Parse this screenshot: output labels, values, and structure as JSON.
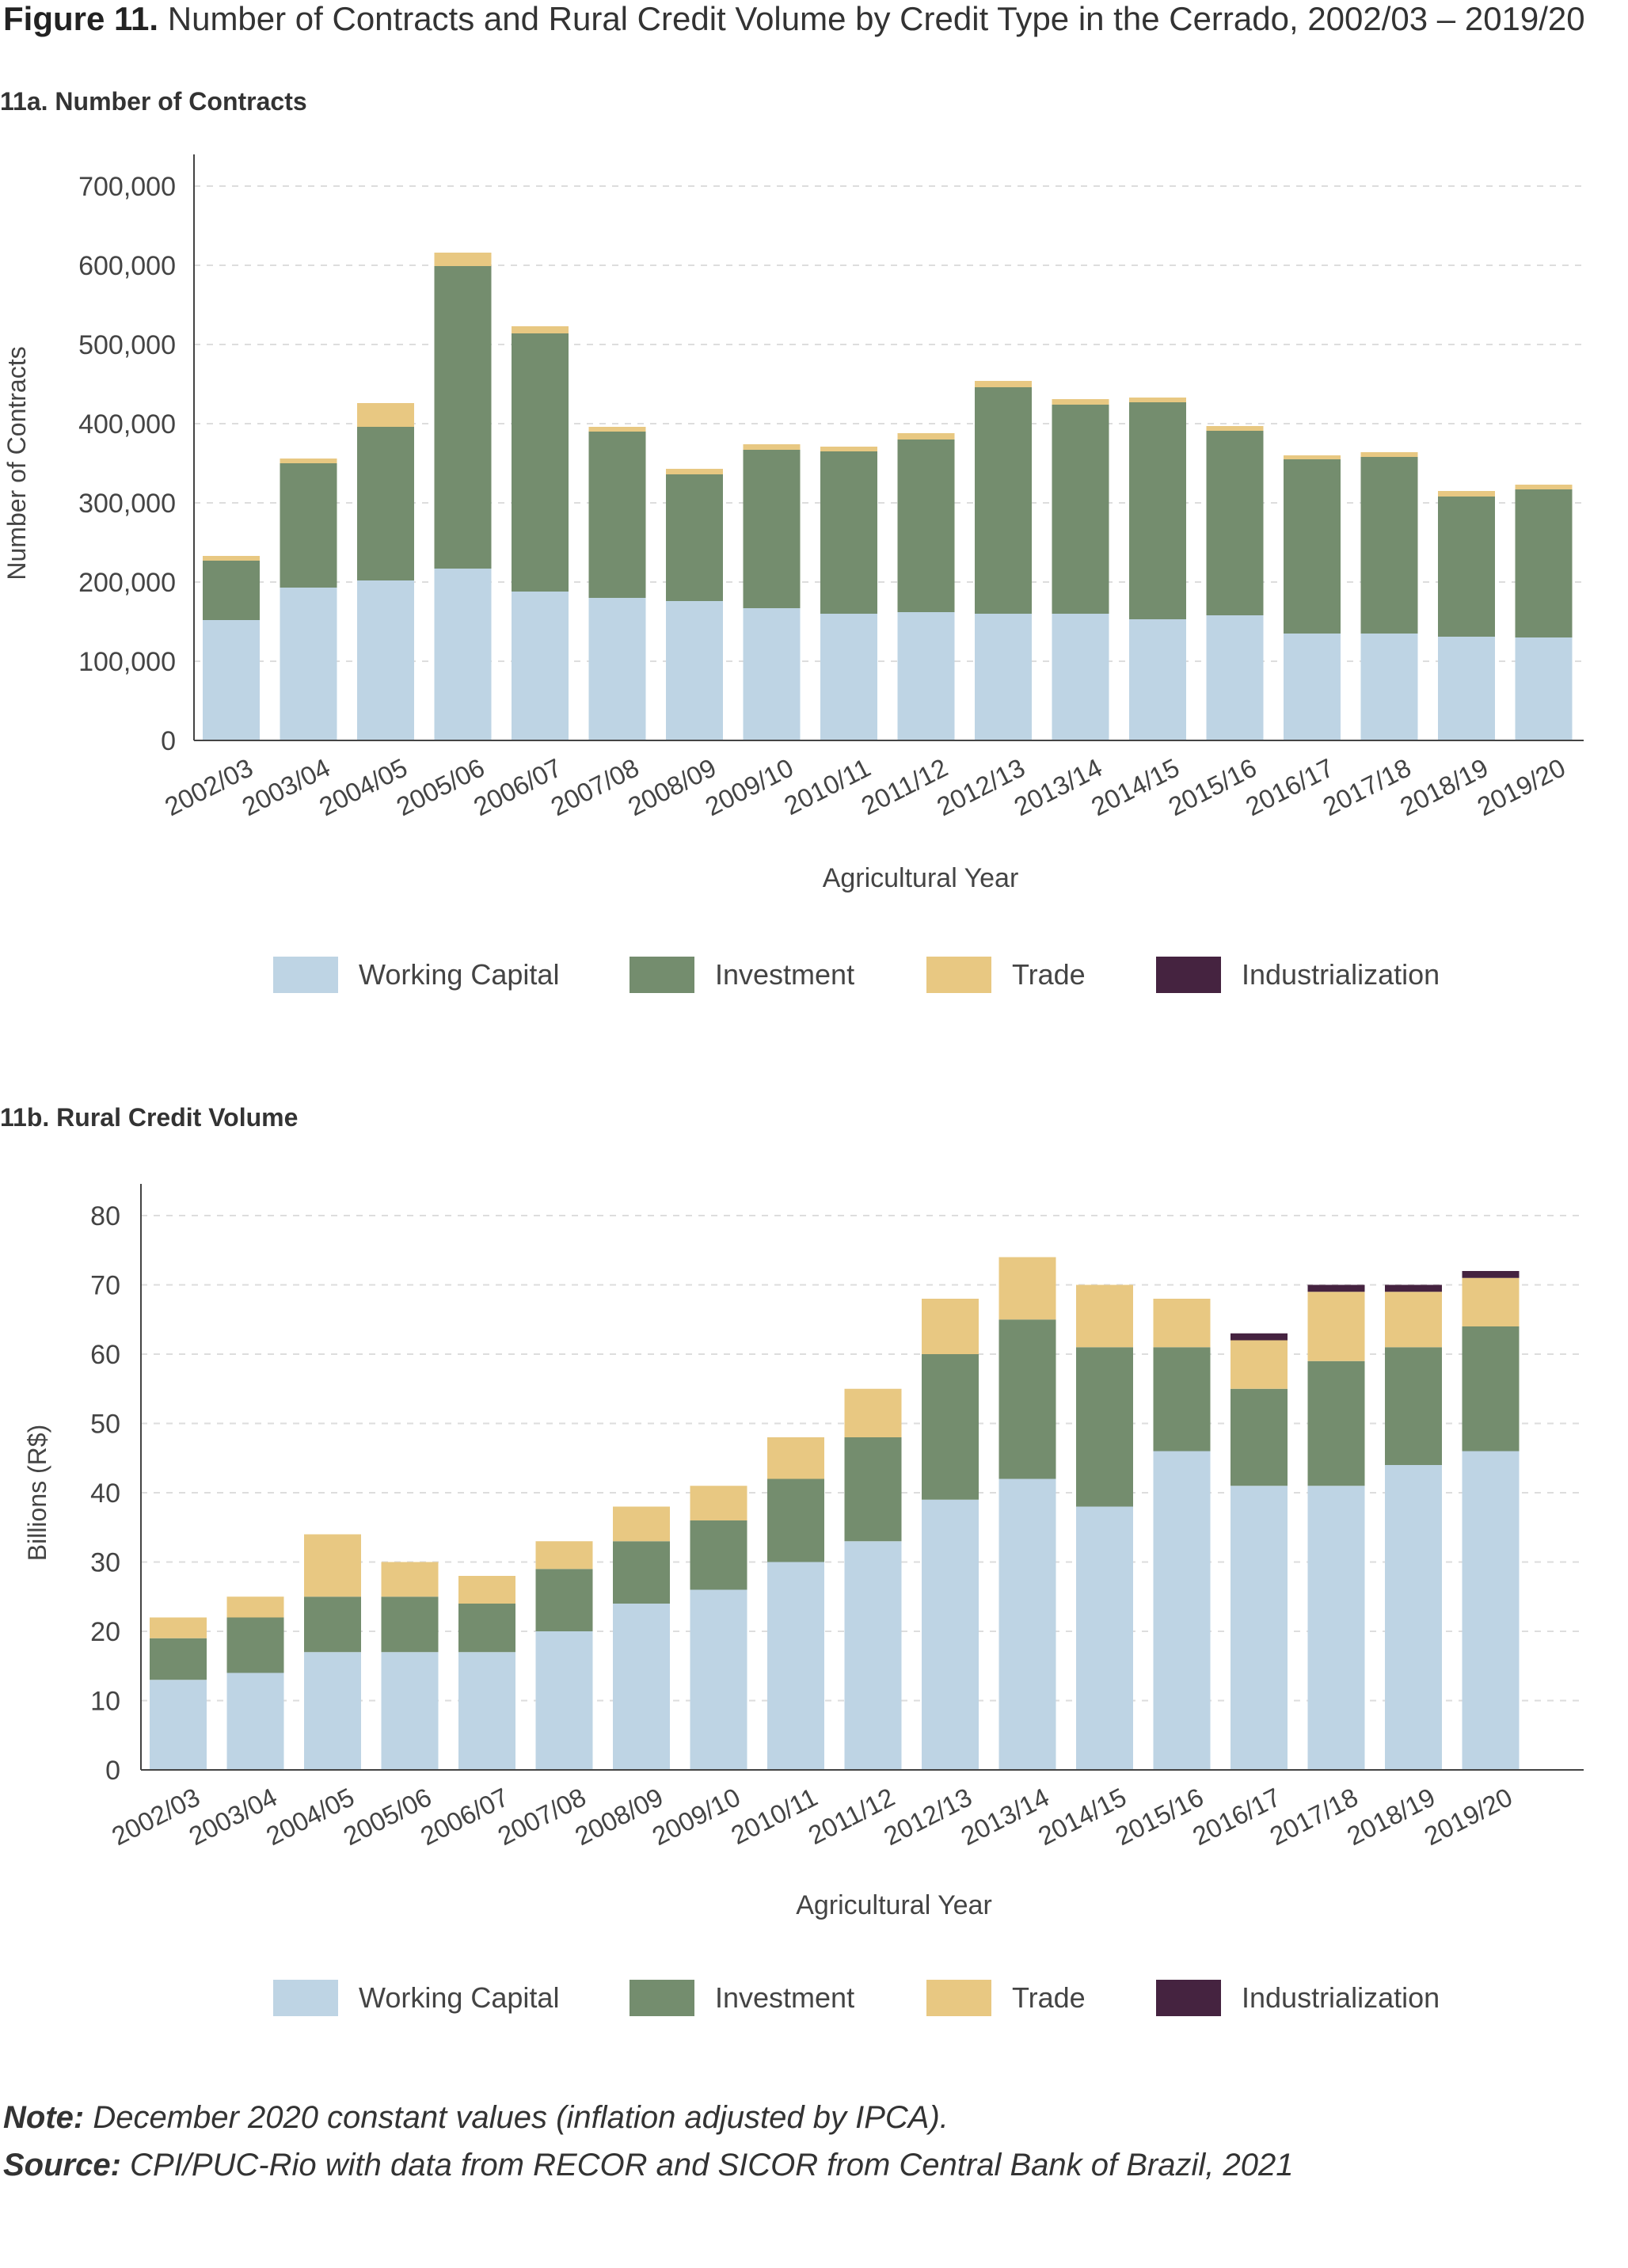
{
  "figure": {
    "label": "Figure 11.",
    "title": "Number of Contracts and Rural Credit Volume by Credit Type in the Cerrado, 2002/03 – 2019/20"
  },
  "colors": {
    "working_capital": "#bed4e4",
    "investment": "#748d6e",
    "trade": "#e8c882",
    "industrialization": "#452340",
    "grid": "#dddddd",
    "axis": "#444444"
  },
  "footer": {
    "note_label": "Note:",
    "note_text": " December 2020 constant values (inflation adjusted by IPCA).",
    "source_label": "Source:",
    "source_text": " CPI/PUC-Rio with data from RECOR and SICOR from Central Bank of Brazil, 2021"
  },
  "chart_data": [
    {
      "id": "contracts",
      "type": "bar",
      "stacked": true,
      "panel_title": "11a. Number of Contracts",
      "xlabel": "Agricultural Year",
      "ylabel": "Number of Contracts",
      "ylim": [
        0,
        700000
      ],
      "yticks": [
        0,
        100000,
        200000,
        300000,
        400000,
        500000,
        600000,
        700000
      ],
      "ytick_labels": [
        "0",
        "100,000",
        "200,000",
        "300,000",
        "400,000",
        "500,000",
        "600,000",
        "700,000"
      ],
      "grid": true,
      "legend_position": "bottom",
      "categories": [
        "2002/03",
        "2003/04",
        "2004/05",
        "2005/06",
        "2006/07",
        "2007/08",
        "2008/09",
        "2009/10",
        "2010/11",
        "2011/12",
        "2012/13",
        "2013/14",
        "2014/15",
        "2015/16",
        "2016/17",
        "2017/18",
        "2018/19",
        "2019/20"
      ],
      "series": [
        {
          "name": "Working Capital",
          "color_key": "working_capital",
          "values": [
            152000,
            193000,
            202000,
            217000,
            188000,
            180000,
            176000,
            167000,
            160000,
            162000,
            160000,
            160000,
            153000,
            158000,
            135000,
            135000,
            131000,
            130000
          ]
        },
        {
          "name": "Investment",
          "color_key": "investment",
          "values": [
            75000,
            157000,
            194000,
            382000,
            326000,
            210000,
            160000,
            200000,
            205000,
            218000,
            286000,
            264000,
            274000,
            233000,
            220000,
            223000,
            177000,
            187000
          ]
        },
        {
          "name": "Trade",
          "color_key": "trade",
          "values": [
            6000,
            6000,
            30000,
            17000,
            9000,
            6000,
            7000,
            7000,
            6000,
            8000,
            8000,
            7000,
            6000,
            6000,
            5000,
            6000,
            7000,
            6000
          ]
        },
        {
          "name": "Industrialization",
          "color_key": "industrialization",
          "values": [
            0,
            0,
            0,
            0,
            0,
            0,
            0,
            0,
            0,
            0,
            0,
            0,
            0,
            0,
            0,
            0,
            0,
            0
          ]
        }
      ]
    },
    {
      "id": "volume",
      "type": "bar",
      "stacked": true,
      "panel_title": "11b. Rural Credit Volume",
      "xlabel": "Agricultural Year",
      "ylabel": "Billions (R$)",
      "ylim": [
        0,
        80
      ],
      "yticks": [
        0,
        10,
        20,
        30,
        40,
        50,
        60,
        70,
        80
      ],
      "ytick_labels": [
        "0",
        "10",
        "20",
        "30",
        "40",
        "50",
        "60",
        "70",
        "80"
      ],
      "grid": true,
      "legend_position": "bottom",
      "categories": [
        "2002/03",
        "2003/04",
        "2004/05",
        "2005/06",
        "2006/07",
        "2007/08",
        "2008/09",
        "2009/10",
        "2010/11",
        "2011/12",
        "2012/13",
        "2013/14",
        "2014/15",
        "2015/16",
        "2016/17",
        "2017/18",
        "2018/19",
        "2019/20"
      ],
      "series": [
        {
          "name": "Working Capital",
          "color_key": "working_capital",
          "values": [
            13,
            14,
            17,
            17,
            17,
            20,
            24,
            26,
            30,
            33,
            39,
            42,
            38,
            46,
            41,
            41,
            44,
            46
          ]
        },
        {
          "name": "Investment",
          "color_key": "investment",
          "values": [
            6,
            8,
            8,
            8,
            7,
            9,
            9,
            10,
            12,
            15,
            21,
            23,
            23,
            15,
            14,
            18,
            17,
            18
          ]
        },
        {
          "name": "Trade",
          "color_key": "trade",
          "values": [
            3,
            3,
            9,
            5,
            4,
            4,
            5,
            5,
            6,
            7,
            8,
            9,
            9,
            7,
            7,
            10,
            8,
            7
          ]
        },
        {
          "name": "Industrialization",
          "color_key": "industrialization",
          "values": [
            0,
            0,
            0,
            0,
            0,
            0,
            0,
            0,
            0,
            0,
            0,
            0,
            0,
            0,
            1,
            1,
            1,
            1
          ]
        }
      ]
    }
  ]
}
